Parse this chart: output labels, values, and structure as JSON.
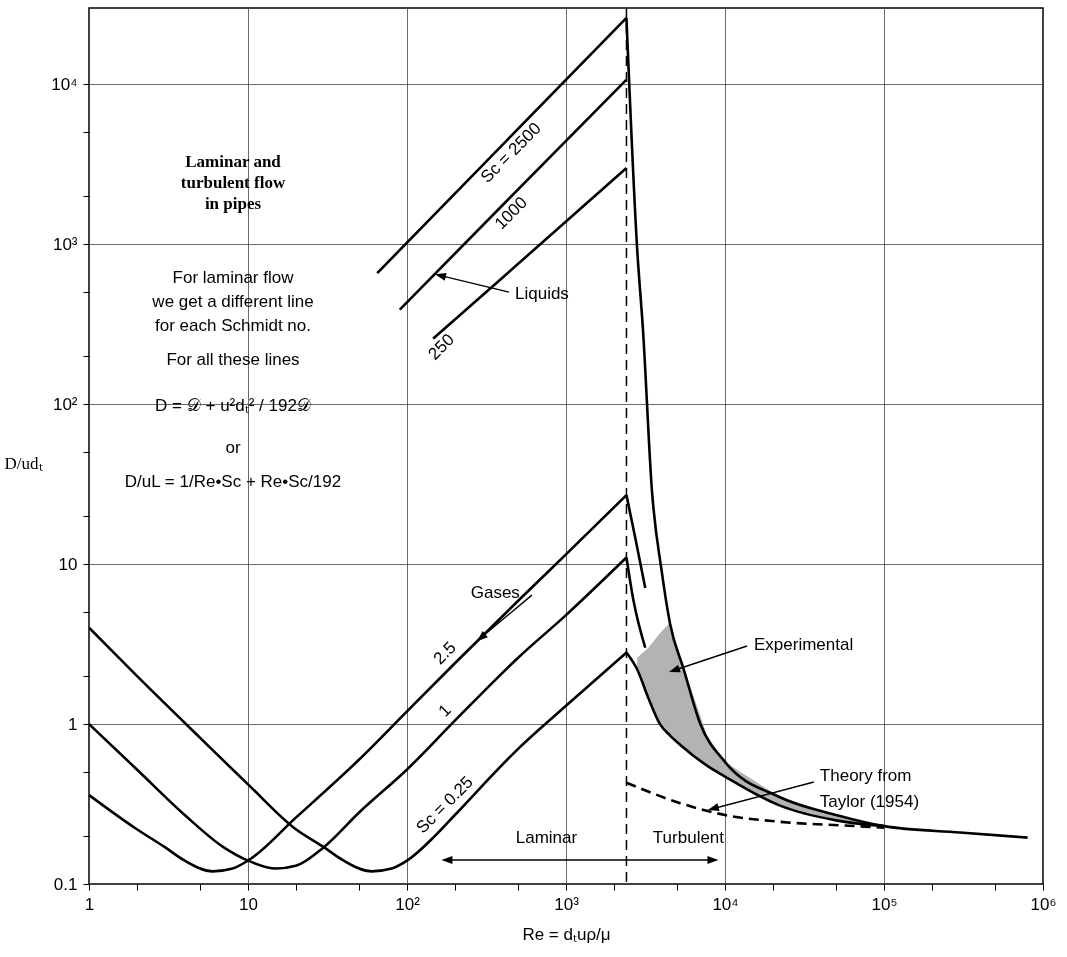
{
  "chart_data": {
    "type": "line",
    "title": "Laminar and\nturbulent flow\nin pipes",
    "xlabel": "Re = dₜuρ/μ",
    "ylabel": "D/udₜ",
    "log": "xy",
    "grid": true,
    "xlim": [
      1,
      1000000
    ],
    "ylim": [
      0.1,
      30000
    ],
    "xticks": [
      1,
      {
        "value": 2,
        "label": null
      },
      {
        "value": 5,
        "label": null
      },
      10,
      {
        "value": 20,
        "label": null
      },
      {
        "value": 50,
        "label": null
      },
      {
        "value": 100,
        "label": "10²"
      },
      {
        "value": 200,
        "label": null
      },
      {
        "value": 500,
        "label": null
      },
      {
        "value": 1000,
        "label": "10³"
      },
      {
        "value": 2000,
        "label": null
      },
      {
        "value": 5000,
        "label": null
      },
      {
        "value": 10000,
        "label": "10⁴"
      },
      {
        "value": 20000,
        "label": null
      },
      {
        "value": 50000,
        "label": null
      },
      {
        "value": 100000,
        "label": "10⁵"
      },
      {
        "value": 200000,
        "label": null
      },
      {
        "value": 500000,
        "label": null
      },
      {
        "value": 1000000,
        "label": "10⁶"
      }
    ],
    "yticks": [
      0.1,
      {
        "value": 0.2,
        "label": null
      },
      {
        "value": 0.5,
        "label": null
      },
      1,
      {
        "value": 2,
        "label": null
      },
      {
        "value": 5,
        "label": null
      },
      10,
      {
        "value": 20,
        "label": null
      },
      {
        "value": 50,
        "label": null
      },
      {
        "value": 100,
        "label": "10²"
      },
      {
        "value": 200,
        "label": null
      },
      {
        "value": 500,
        "label": null
      },
      {
        "value": 1000,
        "label": "10³"
      },
      {
        "value": 2000,
        "label": null
      },
      {
        "value": 5000,
        "label": null
      },
      {
        "value": 10000,
        "label": "10⁴"
      }
    ],
    "series": [
      {
        "name": "Sc = 0.25",
        "color": "#000000",
        "x": [
          1,
          2,
          5,
          10,
          20,
          30,
          40,
          60,
          80,
          100,
          150,
          200,
          500,
          1000,
          2400
        ],
        "values": [
          4.0,
          2.0,
          0.82,
          0.42,
          0.22,
          0.17,
          0.14,
          0.12,
          0.125,
          0.14,
          0.2,
          0.27,
          0.7,
          1.3,
          2.8
        ]
      },
      {
        "name": "1",
        "color": "#000000",
        "x": [
          1,
          2,
          4,
          7,
          10,
          15,
          20,
          30,
          50,
          100,
          200,
          500,
          1000,
          2400
        ],
        "values": [
          1.0,
          0.52,
          0.27,
          0.17,
          0.14,
          0.125,
          0.13,
          0.17,
          0.28,
          0.52,
          1.05,
          2.6,
          4.8,
          11
        ]
      },
      {
        "name": "2.5",
        "color": "#000000",
        "x": [
          1,
          2,
          3,
          4,
          6,
          8,
          10,
          20,
          50,
          100,
          200,
          500,
          1000,
          2400
        ],
        "values": [
          0.36,
          0.22,
          0.17,
          0.14,
          0.12,
          0.125,
          0.14,
          0.26,
          0.6,
          1.2,
          2.4,
          5.9,
          11.5,
          27
        ]
      },
      {
        "name": "Sc = 2500",
        "color": "#000000",
        "x": [
          65,
          400,
          2400
        ],
        "values": [
          660,
          4200,
          26000
        ]
      },
      {
        "name": "1000",
        "color": "#000000",
        "x": [
          90,
          400,
          2400
        ],
        "values": [
          390,
          1760,
          10700
        ]
      },
      {
        "name": "250",
        "color": "#000000",
        "x": [
          146,
          400,
          2400
        ],
        "values": [
          257,
          620,
          3000
        ]
      },
      {
        "color": "#000000",
        "x": [
          2400,
          2800,
          3050,
          3470,
          4000,
          4500,
          5500,
          7000,
          10000,
          22000,
          50000,
          100000,
          300000,
          800000
        ],
        "values": [
          26000,
          950,
          290,
          29,
          9,
          4.3,
          2.2,
          1.0,
          0.58,
          0.35,
          0.27,
          0.23,
          0.21,
          0.195
        ]
      },
      {
        "color": "#000000",
        "x": [
          2400,
          2800,
          3300,
          3900,
          4500,
          5240,
          7700,
          10000,
          22000,
          50000,
          100000
        ],
        "values": [
          2.8,
          2.2,
          1.45,
          1.0,
          0.85,
          0.74,
          0.55,
          0.47,
          0.31,
          0.25,
          0.23
        ],
        "lower": [
          null,
          2.2,
          1.45,
          1.0,
          0.85,
          0.74,
          0.55,
          0.47,
          0.31,
          0.25,
          0.23
        ],
        "upper": [
          null,
          2.6,
          3.0,
          3.7,
          4.3,
          2.6,
          0.85,
          0.58,
          0.35,
          0.27,
          0.23
        ]
      },
      {
        "color": "#000000",
        "x": [
          2400,
          2750,
          3150
        ],
        "values": [
          27,
          14,
          7.1
        ]
      },
      {
        "color": "#000000",
        "x": [
          2400,
          2650,
          3150
        ],
        "values": [
          11,
          6,
          3.0
        ]
      },
      {
        "color": "#000000",
        "line_style": "dashed",
        "x": [
          2400,
          5240,
          10000,
          22000,
          68000,
          100000
        ],
        "values": [
          0.43,
          0.32,
          0.27,
          0.245,
          0.23,
          0.225
        ]
      }
    ],
    "ref_lines": [
      {
        "axis": "x",
        "value": 2400,
        "line_style": "dashed"
      }
    ],
    "annotations": [
      "For laminar flow\nwe get a different line\nfor each Schmidt no.",
      "For all these lines",
      "D = 𝒟 + u²dₜ² / 192𝒟",
      "or",
      "D/uL = 1/Re•Sc + Re•Sc/192",
      "Laminar",
      "Turbulent",
      {
        "text": "Liquids",
        "x": 150,
        "y": 650
      },
      {
        "text": "Gases",
        "x": 275,
        "y": 3.3
      },
      "Experimental",
      {
        "text": "Theory from\nTaylor (1954)",
        "x": 7800,
        "y": 0.29
      }
    ]
  }
}
